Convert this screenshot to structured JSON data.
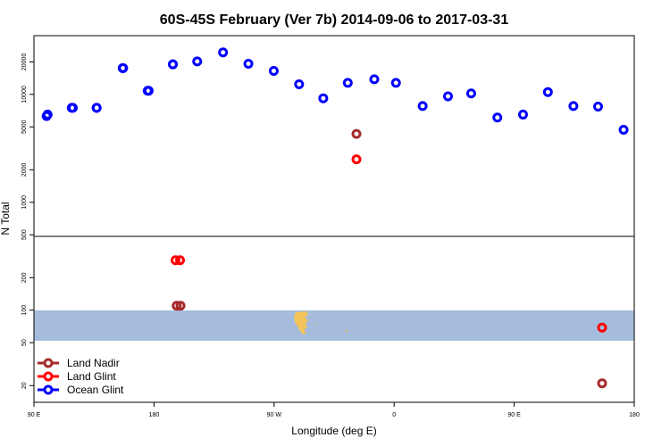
{
  "chart_data": {
    "type": "scatter",
    "title": "60S-45S February (Ver 7b)   2014-09-06 to 2017-03-31",
    "xlabel": "Longitude (deg E)",
    "ylabel": "N Total",
    "y_scale": "log",
    "ylim": [
      14,
      35000
    ],
    "x_ticks": [
      "90 E",
      "180",
      "90 W",
      "0",
      "90 E",
      "180"
    ],
    "y_ticks": [
      20,
      50,
      100,
      200,
      500,
      1000,
      2000,
      5000,
      10000,
      20000
    ],
    "grid": false,
    "legend_position": "bottom-left",
    "colors": {
      "land_nadir": "#a52a2a",
      "land_glint": "#ff0000",
      "ocean_glint": "#0000ff",
      "ocean_band": "#a6bcdc",
      "land_shape": "#f2c45a"
    },
    "series": [
      {
        "name": "Land Nadir",
        "color": "#a52a2a",
        "points": [
          {
            "x": 175.6,
            "y": 110
          },
          {
            "x": -76.6,
            "y": 4300
          },
          {
            "x": 70.7,
            "y": 21
          },
          {
            "x": 177.9,
            "y": 110
          }
        ]
      },
      {
        "name": "Land Glint",
        "color": "#ff0000",
        "points": [
          {
            "x": 174.9,
            "y": 290
          },
          {
            "x": -76.6,
            "y": 2500
          },
          {
            "x": 70.7,
            "y": 69
          },
          {
            "x": 177.6,
            "y": 290
          }
        ]
      },
      {
        "name": "Ocean Glint",
        "color": "#0000ff",
        "points": [
          {
            "x": 97.6,
            "y": 6300
          },
          {
            "x": 112.7,
            "y": 7500
          },
          {
            "x": 127.6,
            "y": 7500
          },
          {
            "x": 143.2,
            "y": 17500
          },
          {
            "x": 158.8,
            "y": 10800
          },
          {
            "x": 173.3,
            "y": 19000
          },
          {
            "x": -172.1,
            "y": 20200
          },
          {
            "x": -156.6,
            "y": 24500
          },
          {
            "x": -141.4,
            "y": 19200
          },
          {
            "x": -126.2,
            "y": 16500
          },
          {
            "x": -111.0,
            "y": 12400
          },
          {
            "x": -96.5,
            "y": 9200
          },
          {
            "x": -81.8,
            "y": 12800
          },
          {
            "x": -65.9,
            "y": 13800
          },
          {
            "x": -52.9,
            "y": 12800
          },
          {
            "x": -36.9,
            "y": 7800
          },
          {
            "x": -21.7,
            "y": 9600
          },
          {
            "x": -7.8,
            "y": 10200
          },
          {
            "x": 7.9,
            "y": 6100
          },
          {
            "x": 23.3,
            "y": 6500
          },
          {
            "x": 38.2,
            "y": 10500
          },
          {
            "x": 53.5,
            "y": 7800
          },
          {
            "x": 68.3,
            "y": 7700
          },
          {
            "x": 83.6,
            "y": 4700
          },
          {
            "x": 98.2,
            "y": 6500
          },
          {
            "x": 113.3,
            "y": 7500
          },
          {
            "x": 127.6,
            "y": 7500
          },
          {
            "x": 143.5,
            "y": 17500
          },
          {
            "x": 158.2,
            "y": 10800
          },
          {
            "x": 173.3,
            "y": 19000
          }
        ]
      }
    ]
  }
}
